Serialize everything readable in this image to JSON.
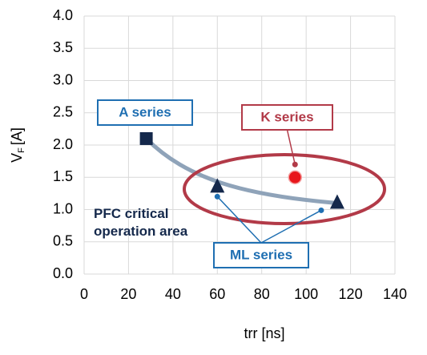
{
  "chart_data": {
    "type": "scatter",
    "xlabel": "trr [ns]",
    "ylabel": {
      "main": "V",
      "sub": "F",
      "unit": "[A]"
    },
    "xlim": [
      0,
      140
    ],
    "ylim": [
      0,
      4
    ],
    "xticks": [
      0,
      20,
      40,
      60,
      80,
      100,
      120,
      140
    ],
    "yticks": [
      {
        "value": 0,
        "label": "0.0"
      },
      {
        "value": 0.5,
        "label": "0.5"
      },
      {
        "value": 1,
        "label": "1.0"
      },
      {
        "value": 1.5,
        "label": "1.5"
      },
      {
        "value": 2,
        "label": "2.0"
      },
      {
        "value": 2.5,
        "label": "2.5"
      },
      {
        "value": 3,
        "label": "3.0"
      },
      {
        "value": 3.5,
        "label": "3.5"
      },
      {
        "value": 4,
        "label": "4.0"
      }
    ],
    "grid": true,
    "series": [
      {
        "name": "A series",
        "color": "#14284b",
        "label_color": "#1f6fb2",
        "marker": "square",
        "x": [
          28
        ],
        "values": [
          2.1
        ]
      },
      {
        "name": "ML series",
        "color": "#14284b",
        "label_color": "#1f6fb2",
        "marker": "triangle",
        "x": [
          60,
          114
        ],
        "values": [
          1.35,
          1.1
        ]
      },
      {
        "name": "K series",
        "color": "#e8161b",
        "label_color": "#b23a48",
        "marker": "circle",
        "x": [
          95
        ],
        "values": [
          1.5
        ]
      }
    ],
    "annotation": [
      "PFC critical",
      "operation area"
    ]
  }
}
